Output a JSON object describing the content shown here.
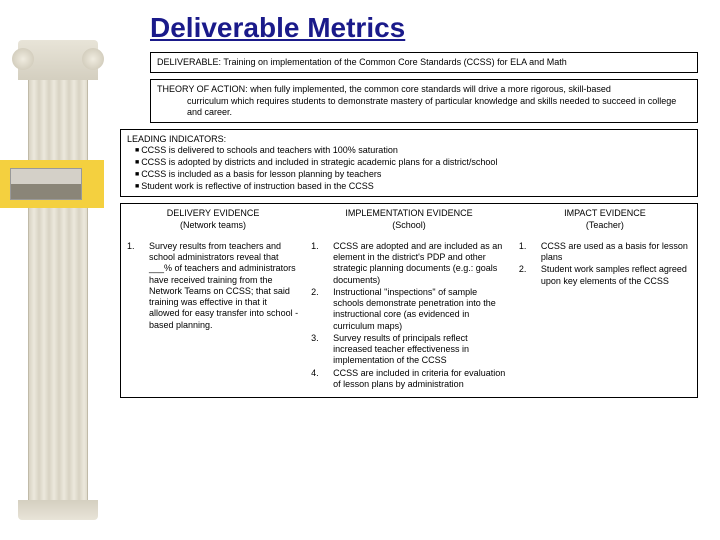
{
  "title": "Deliverable Metrics",
  "deliverable": {
    "label": "DELIVERABLE:",
    "text": "Training on implementation of the Common Core Standards (CCSS) for ELA and Math"
  },
  "theory": {
    "label": "THEORY OF ACTION:",
    "text": "when fully implemented, the common core standards will drive a more rigorous, skill-based curriculum which requires students to demonstrate mastery of particular knowledge and skills needed to succeed in college and career."
  },
  "leading": {
    "label": "LEADING INDICATORS:",
    "items": [
      "CCSS is delivered to schools and teachers with 100% saturation",
      "CCSS is adopted by districts and included in strategic academic plans for a district/school",
      "CCSS is included as a basis for lesson planning by teachers",
      "Student work is reflective of instruction based in the CCSS"
    ]
  },
  "evidence": {
    "headers": {
      "delivery": {
        "line1": "DELIVERY EVIDENCE",
        "line2": "(Network teams)"
      },
      "implementation": {
        "line1": "IMPLEMENTATION EVIDENCE",
        "line2": "(School)"
      },
      "impact": {
        "line1": "IMPACT EVIDENCE",
        "line2": "(Teacher)"
      }
    },
    "delivery_items": [
      "Survey results from teachers and school administrators reveal that ___% of teachers and administrators have received training from the Network Teams on CCSS; that said training was effective in that it allowed for easy transfer into school -based planning."
    ],
    "implementation_items": [
      "CCSS are adopted and are included as an element in the district's PDP and other strategic planning documents (e.g.: goals documents)",
      "Instructional \"inspections\" of sample schools demonstrate penetration into the instructional core (as evidenced in curriculum maps)",
      "Survey results of principals reflect increased teacher effectiveness in implementation of the CCSS",
      "CCSS are included in criteria for evaluation of lesson plans by administration"
    ],
    "impact_items": [
      "CCSS are used as a basis for lesson plans",
      "Student work samples reflect agreed upon key elements of the CCSS"
    ]
  }
}
